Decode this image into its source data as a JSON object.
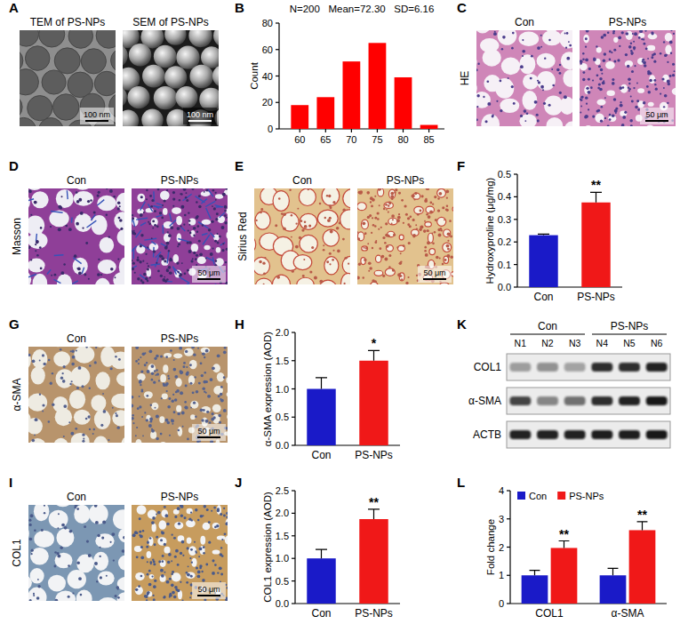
{
  "images": [
    {
      "panel": "A",
      "titles": [
        "TEM of PS-NPs",
        "SEM of PS-NPs"
      ],
      "scale_bars": [
        "100 nm",
        "100 nm"
      ]
    },
    {
      "panel": "C",
      "row_label": "HE",
      "titles": [
        "Con",
        "PS-NPs"
      ],
      "scale_bars": [
        null,
        "50 μm"
      ]
    },
    {
      "panel": "D",
      "row_label": "Masson",
      "titles": [
        "Con",
        "PS-NPs"
      ],
      "scale_bars": [
        null,
        "50 μm"
      ]
    },
    {
      "panel": "E",
      "row_label": "Sirius Red",
      "titles": [
        "Con",
        "PS-NPs"
      ],
      "scale_bars": [
        null,
        "50 μm"
      ]
    },
    {
      "panel": "G",
      "row_label": "α-SMA",
      "titles": [
        "Con",
        "PS-NPs"
      ],
      "scale_bars": [
        null,
        "50 μm"
      ]
    },
    {
      "panel": "I",
      "row_label": "COL1",
      "titles": [
        "Con",
        "PS-NPs"
      ],
      "scale_bars": [
        null,
        "50 μm"
      ]
    }
  ],
  "chart_data": [
    {
      "panel": "B",
      "type": "bar",
      "title": "N=200   Mean=72.30   SD=6.16",
      "ylabel": "Count",
      "x": [
        60,
        65,
        70,
        75,
        80,
        85
      ],
      "values": [
        18,
        24,
        51,
        65,
        39,
        3
      ],
      "color": "#ff0000",
      "xlim": [
        56,
        88
      ],
      "xticks": [
        60,
        65,
        70,
        75,
        80,
        85
      ],
      "ylim": [
        0,
        80
      ],
      "yticks": [
        0,
        20,
        40,
        60,
        80
      ]
    },
    {
      "panel": "F",
      "type": "bar",
      "ylabel": "Hydroxyproline (μg/mg)",
      "categories": [
        "Con",
        "PS-NPs"
      ],
      "values": [
        0.23,
        0.375
      ],
      "errors": [
        0.005,
        0.045
      ],
      "significance": [
        null,
        "**"
      ],
      "colors": [
        "#1a1ac8",
        "#f01818"
      ],
      "ylim": [
        0,
        0.5
      ],
      "yticks": [
        {
          "value": 0,
          "label": "0.0"
        },
        0.1,
        0.2,
        0.3,
        0.4,
        0.5
      ]
    },
    {
      "panel": "H",
      "type": "bar",
      "ylabel": "α-SMA expression (AOD)",
      "categories": [
        "Con",
        "PS-NPs"
      ],
      "values": [
        1.0,
        1.5
      ],
      "errors": [
        0.2,
        0.18
      ],
      "significance": [
        null,
        "*"
      ],
      "colors": [
        "#1a1ac8",
        "#f01818"
      ],
      "ylim": [
        0,
        2
      ],
      "yticks": [
        {
          "value": 0,
          "label": "0.0"
        },
        0.5,
        {
          "value": 1,
          "label": "1.0"
        },
        1.5,
        {
          "value": 2,
          "label": "2.0"
        }
      ]
    },
    {
      "panel": "J",
      "type": "bar",
      "ylabel": "COL1 expression (AOD)",
      "categories": [
        "Con",
        "PS-NPs"
      ],
      "values": [
        1.0,
        1.87
      ],
      "errors": [
        0.2,
        0.22
      ],
      "significance": [
        null,
        "**"
      ],
      "colors": [
        "#1a1ac8",
        "#f01818"
      ],
      "ylim": [
        0,
        2.5
      ],
      "yticks": [
        {
          "value": 0,
          "label": "0.0"
        },
        0.5,
        {
          "value": 1,
          "label": "1.0"
        },
        1.5,
        {
          "value": 2,
          "label": "2.0"
        },
        2.5
      ]
    },
    {
      "panel": "L",
      "type": "bar",
      "ylabel": "Fold change",
      "categories": [
        "COL1",
        "α-SMA"
      ],
      "series": [
        {
          "name": "Con",
          "color": "#1a1ac8",
          "values": [
            1.0,
            1.0
          ],
          "errors": [
            0.18,
            0.25
          ]
        },
        {
          "name": "PS-NPs",
          "color": "#f01818",
          "values": [
            1.97,
            2.6
          ],
          "errors": [
            0.25,
            0.3
          ],
          "significance": [
            "**",
            "**"
          ]
        }
      ],
      "ylim": [
        0,
        4
      ],
      "yticks": [
        0,
        1,
        2,
        3,
        4
      ],
      "legend": "top-left"
    }
  ],
  "blot": {
    "panel": "K",
    "group_labels": [
      "Con",
      "PS-NPs"
    ],
    "lanes": [
      "N1",
      "N2",
      "N3",
      "N4",
      "N5",
      "N6"
    ],
    "rows": [
      {
        "label": "COL1",
        "intensity": [
          0.35,
          0.4,
          0.32,
          0.85,
          0.85,
          0.9
        ]
      },
      {
        "label": "α-SMA",
        "intensity": [
          0.75,
          0.45,
          0.55,
          0.85,
          0.9,
          0.95
        ]
      },
      {
        "label": "ACTB",
        "intensity": [
          0.9,
          0.9,
          0.9,
          0.92,
          0.92,
          0.95
        ]
      }
    ]
  }
}
